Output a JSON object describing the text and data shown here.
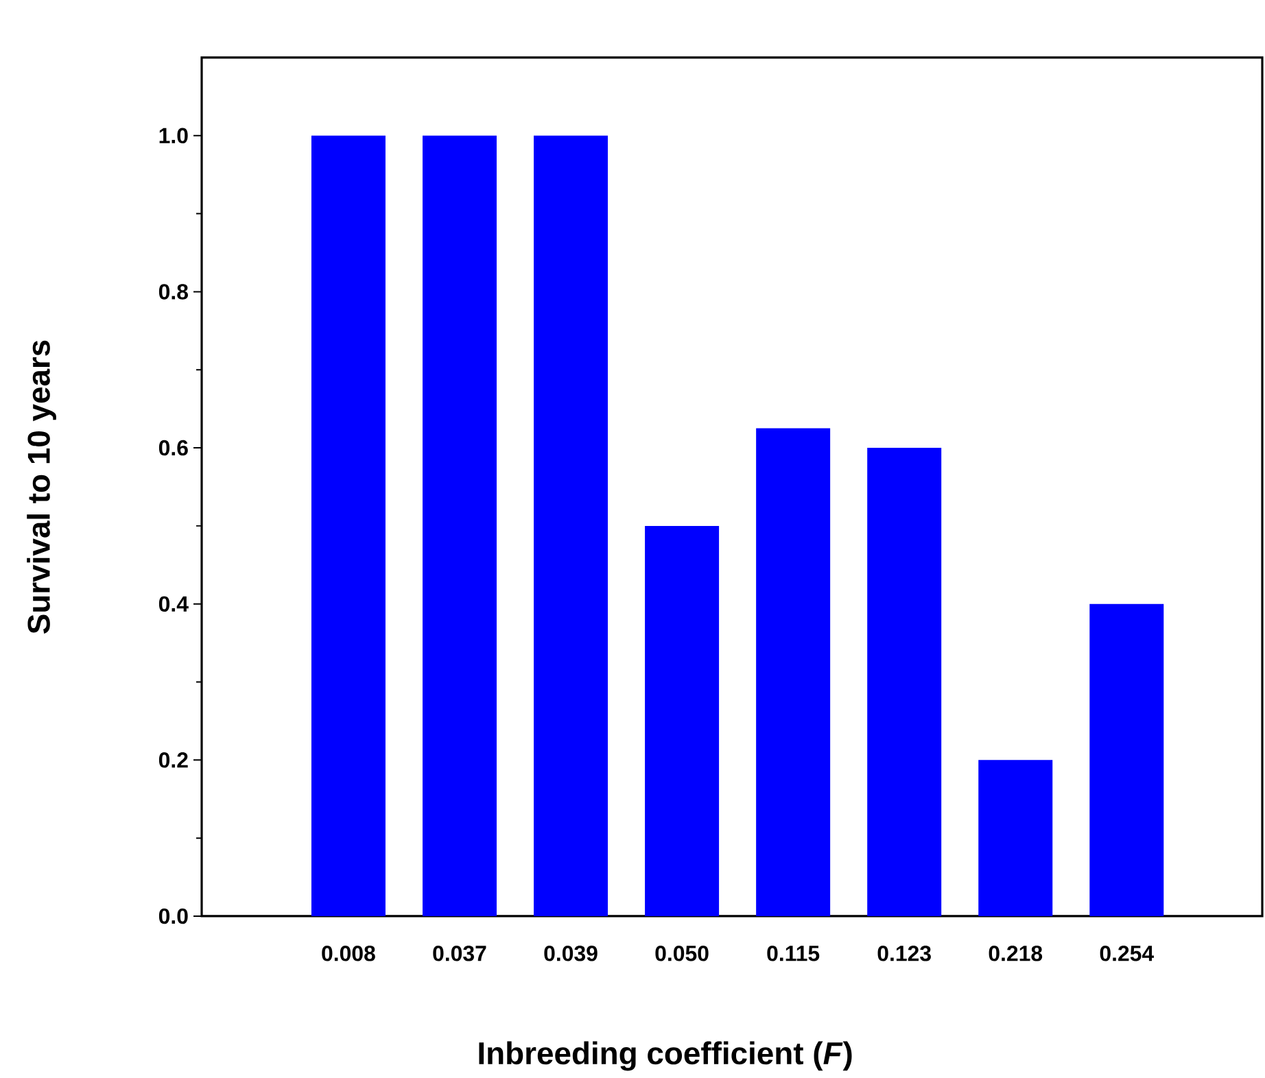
{
  "chart_data": {
    "type": "bar",
    "xlabel": "Inbreeding coefficient (*F*)",
    "ylabel": "Survival to 10 years",
    "categories": [
      "0.008",
      "0.037",
      "0.039",
      "0.050",
      "0.115",
      "0.123",
      "0.218",
      "0.254"
    ],
    "values": [
      1.0,
      1.0,
      1.0,
      0.5,
      0.625,
      0.6,
      0.2,
      0.4
    ],
    "color": "#0000ff",
    "ylim": [
      0,
      1.1
    ],
    "yticks": [
      {
        "value": 0,
        "label": "0.0"
      },
      {
        "value": 0.2,
        "label": "0.2"
      },
      {
        "value": 0.4,
        "label": "0.4"
      },
      {
        "value": 0.6,
        "label": "0.6"
      },
      {
        "value": 0.8,
        "label": "0.8"
      },
      {
        "value": 1,
        "label": "1.0"
      }
    ],
    "grid": false
  }
}
